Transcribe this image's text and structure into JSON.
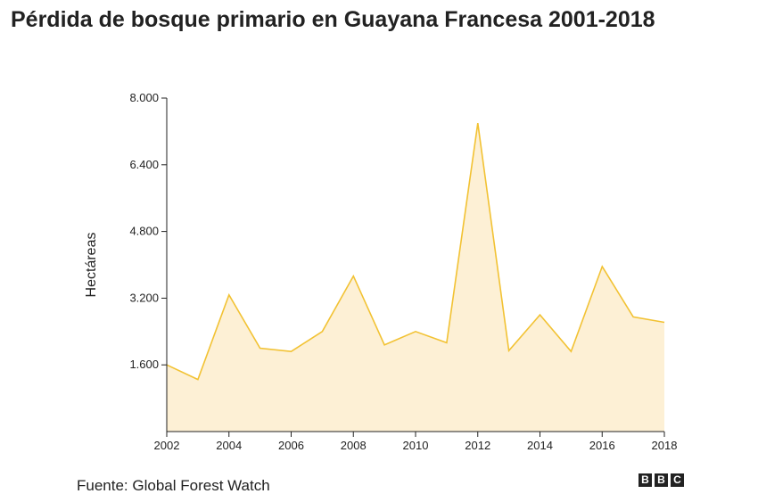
{
  "title": "Pérdida de bosque primario en Guayana Francesa 2001-2018",
  "source": "Fuente: Global Forest Watch",
  "logo_letters": [
    "B",
    "B",
    "C"
  ],
  "colors": {
    "line": "#f2c233",
    "fill": "#fdf0d5",
    "axis": "#222222"
  },
  "chart_data": {
    "type": "area",
    "title": "Pérdida de bosque primario en Guayana Francesa 2001-2018",
    "ylabel": "Hectáreas",
    "xlabel": "",
    "x": [
      2002,
      2003,
      2004,
      2005,
      2006,
      2007,
      2008,
      2009,
      2010,
      2011,
      2012,
      2013,
      2014,
      2015,
      2016,
      2017,
      2018
    ],
    "values": [
      1600,
      1250,
      3280,
      2000,
      1920,
      2400,
      3730,
      2080,
      2400,
      2130,
      7400,
      1940,
      2800,
      1920,
      3960,
      2750,
      2620
    ],
    "xlim": [
      2002,
      2018
    ],
    "ylim": [
      0,
      8000
    ],
    "xticks": [
      "2002",
      "2004",
      "2006",
      "2008",
      "2010",
      "2012",
      "2014",
      "2016",
      "2018"
    ],
    "yticks": [
      "1.600",
      "3.200",
      "4.800",
      "6.400",
      "8.000"
    ],
    "ytick_values": [
      1600,
      3200,
      4800,
      6400,
      8000
    ],
    "xtick_values": [
      2002,
      2004,
      2006,
      2008,
      2010,
      2012,
      2014,
      2016,
      2018
    ],
    "grid": false,
    "legend": "none"
  }
}
